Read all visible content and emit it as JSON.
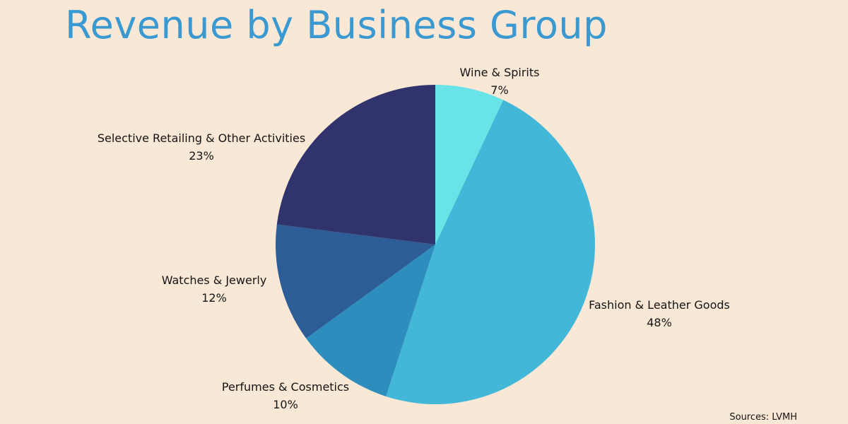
{
  "title": "Revenue by Business Group",
  "source": "Sources: LVMH",
  "chart_data": {
    "type": "pie",
    "title": "Revenue by Business Group",
    "start_angle_deg": 0,
    "direction": "clockwise",
    "slices": [
      {
        "label": "Wine & Spirits",
        "value": 7,
        "value_label": "7%",
        "color": "#68E4E8"
      },
      {
        "label": "Fashion & Leather Goods",
        "value": 48,
        "value_label": "48%",
        "color": "#42B7D8"
      },
      {
        "label": "Perfumes & Cosmetics",
        "value": 10,
        "value_label": "10%",
        "color": "#2D8DBC"
      },
      {
        "label": "Watches & Jewerly",
        "value": 12,
        "value_label": "12%",
        "color": "#2C5D97"
      },
      {
        "label": "Selective Retailing & Other Activities",
        "value": 23,
        "value_label": "23%",
        "color": "#31346C"
      }
    ]
  }
}
